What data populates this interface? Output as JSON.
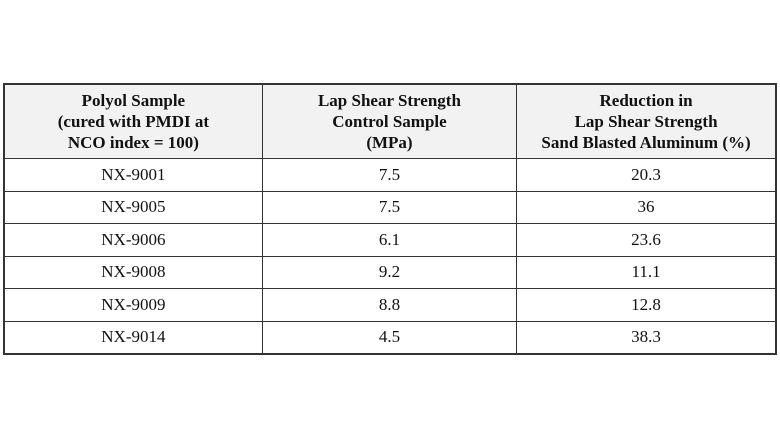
{
  "table": {
    "headers": [
      [
        "Polyol Sample",
        "(cured with PMDI at",
        "NCO index = 100)"
      ],
      [
        "Lap Shear Strength",
        "Control Sample",
        "(MPa)"
      ],
      [
        "Reduction in",
        "Lap Shear Strength",
        "Sand Blasted Aluminum (%)"
      ]
    ],
    "rows": [
      [
        "NX-9001",
        "7.5",
        "20.3"
      ],
      [
        "NX-9005",
        "7.5",
        "36"
      ],
      [
        "NX-9006",
        "6.1",
        "23.6"
      ],
      [
        "NX-9008",
        "9.2",
        "11.1"
      ],
      [
        "NX-9009",
        "8.8",
        "12.8"
      ],
      [
        "NX-9014",
        "4.5",
        "38.3"
      ]
    ],
    "header_background": "#f2f2f2"
  }
}
